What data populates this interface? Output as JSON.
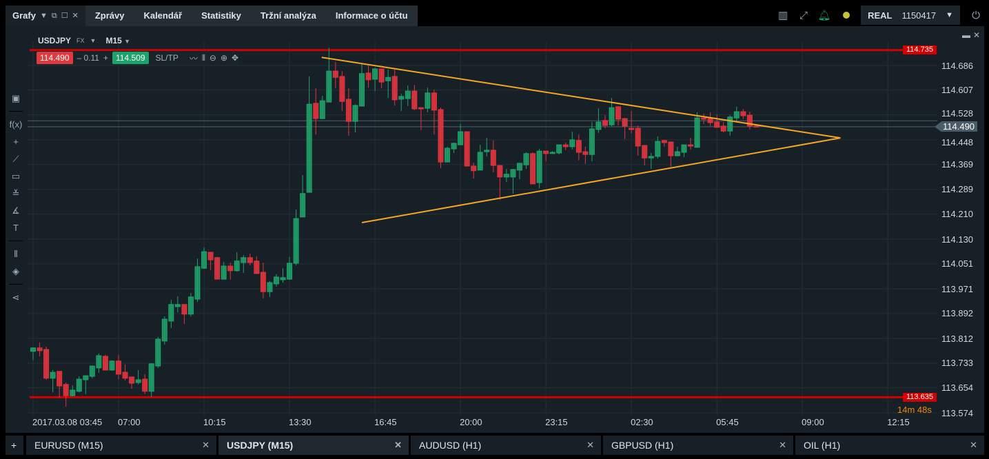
{
  "topnav": {
    "active_tab": "Grafy",
    "tabs": [
      "Zprávy",
      "Kalendář",
      "Statistiky",
      "Tržní analýza",
      "Informace o účtu"
    ]
  },
  "account": {
    "mode": "REAL",
    "number": "1150417"
  },
  "chart_header": {
    "symbol": "USDJPY",
    "market": "FX",
    "timeframe": "M15",
    "bid": "114.490",
    "spread_minus": "– 0.11",
    "spread_plus": "+",
    "ask": "114.509",
    "sltp": "SL/TP"
  },
  "colors": {
    "up": "#1fa36b",
    "down": "#e0343f",
    "level": "#d20000",
    "trend": "#f5a623",
    "background": "#182027"
  },
  "countdown": "14m 48s",
  "bottom_tabs": [
    {
      "label": "EURUSD (M15)"
    },
    {
      "label": "USDJPY (M15)",
      "active": true
    },
    {
      "label": "AUDUSD (H1)"
    },
    {
      "label": "GBPUSD (H1)"
    },
    {
      "label": "OIL (H1)"
    }
  ],
  "chart_data": {
    "type": "candlestick",
    "symbol": "USDJPY",
    "timeframe": "M15",
    "ylim": [
      113.574,
      114.686
    ],
    "y_ticks": [
      "114.686",
      "114.607",
      "114.528",
      "114.448",
      "114.369",
      "114.289",
      "114.210",
      "114.130",
      "114.051",
      "113.971",
      "113.892",
      "113.812",
      "113.733",
      "113.654",
      "113.574"
    ],
    "x_ticks": [
      {
        "bar": 0,
        "label": "2017.03.08 03:45"
      },
      {
        "bar": 13,
        "label": "07:00"
      },
      {
        "bar": 26,
        "label": "10:15"
      },
      {
        "bar": 39,
        "label": "13:30"
      },
      {
        "bar": 52,
        "label": "16:45"
      },
      {
        "bar": 65,
        "label": "20:00"
      },
      {
        "bar": 78,
        "label": "23:15"
      },
      {
        "bar": 91,
        "label": "02:30"
      },
      {
        "bar": 104,
        "label": "05:45"
      },
      {
        "bar": 117,
        "label": "09:00"
      },
      {
        "bar": 130,
        "label": "12:15"
      }
    ],
    "levels": [
      {
        "price": 114.735,
        "label": "114.735"
      },
      {
        "price": 113.635,
        "label": "113.635"
      }
    ],
    "bid_line": {
      "price": 114.49,
      "label": "114.490"
    },
    "ask_line": {
      "price": 114.509
    },
    "trendlines": [
      {
        "from": [
          43.9,
          114.712
        ],
        "to": [
          122.8,
          114.454
        ]
      },
      {
        "from": [
          50.0,
          114.183
        ],
        "to": [
          122.8,
          114.454
        ]
      }
    ],
    "candles": [
      [
        113.771,
        113.784,
        113.742,
        113.782
      ],
      [
        113.782,
        113.799,
        113.755,
        113.773
      ],
      [
        113.777,
        113.786,
        113.68,
        113.685
      ],
      [
        113.685,
        113.711,
        113.64,
        113.704
      ],
      [
        113.707,
        113.707,
        113.623,
        113.66
      ],
      [
        113.665,
        113.671,
        113.594,
        113.629
      ],
      [
        113.629,
        113.662,
        113.627,
        113.647
      ],
      [
        113.643,
        113.691,
        113.64,
        113.682
      ],
      [
        113.68,
        113.693,
        113.634,
        113.693
      ],
      [
        113.691,
        113.726,
        113.685,
        113.724
      ],
      [
        113.718,
        113.764,
        113.702,
        113.757
      ],
      [
        113.755,
        113.76,
        113.711,
        113.711
      ],
      [
        113.711,
        113.742,
        113.709,
        113.74
      ],
      [
        113.74,
        113.76,
        113.682,
        113.698
      ],
      [
        113.704,
        113.729,
        113.678,
        113.685
      ],
      [
        113.689,
        113.689,
        113.651,
        113.669
      ],
      [
        113.671,
        113.711,
        113.665,
        113.68
      ],
      [
        113.682,
        113.698,
        113.634,
        113.643
      ],
      [
        113.643,
        113.733,
        113.625,
        113.731
      ],
      [
        113.724,
        113.817,
        113.718,
        113.81
      ],
      [
        113.804,
        113.883,
        113.793,
        113.874
      ],
      [
        113.868,
        113.936,
        113.846,
        113.921
      ],
      [
        113.914,
        113.947,
        113.896,
        113.921
      ],
      [
        113.921,
        113.921,
        113.859,
        113.89
      ],
      [
        113.89,
        113.958,
        113.883,
        113.945
      ],
      [
        113.938,
        114.068,
        113.929,
        114.042
      ],
      [
        114.037,
        114.104,
        114.035,
        114.09
      ],
      [
        114.088,
        114.088,
        114.031,
        114.064
      ],
      [
        114.071,
        114.073,
        114.002,
        114.002
      ],
      [
        114.002,
        114.057,
        114.002,
        114.044
      ],
      [
        114.044,
        114.055,
        114.0,
        114.029
      ],
      [
        114.029,
        114.088,
        114.026,
        114.06
      ],
      [
        114.055,
        114.079,
        114.022,
        114.071
      ],
      [
        114.071,
        114.084,
        114.046,
        114.055
      ],
      [
        114.06,
        114.075,
        114.02,
        114.02
      ],
      [
        114.024,
        114.055,
        113.94,
        113.962
      ],
      [
        113.962,
        113.996,
        113.945,
        113.991
      ],
      [
        113.987,
        114.018,
        113.978,
        114.009
      ],
      [
        114.0,
        114.037,
        113.991,
        114.007
      ],
      [
        114.002,
        114.073,
        114.0,
        114.053
      ],
      [
        114.053,
        114.225,
        114.046,
        114.196
      ],
      [
        114.201,
        114.335,
        114.201,
        114.276
      ],
      [
        114.28,
        114.651,
        114.28,
        114.562
      ],
      [
        114.565,
        114.613,
        114.465,
        114.516
      ],
      [
        114.516,
        114.589,
        114.514,
        114.573
      ],
      [
        114.569,
        114.743,
        114.569,
        114.668
      ],
      [
        114.668,
        114.697,
        114.613,
        114.648
      ],
      [
        114.651,
        114.668,
        114.54,
        114.571
      ],
      [
        114.578,
        114.613,
        114.461,
        114.507
      ],
      [
        114.507,
        114.562,
        114.472,
        114.558
      ],
      [
        114.556,
        114.693,
        114.556,
        114.66
      ],
      [
        114.662,
        114.688,
        114.615,
        114.64
      ],
      [
        114.642,
        114.679,
        114.604,
        114.675
      ],
      [
        114.675,
        114.675,
        114.613,
        114.633
      ],
      [
        114.637,
        114.673,
        114.582,
        114.648
      ],
      [
        114.651,
        114.673,
        114.558,
        114.576
      ],
      [
        114.578,
        114.596,
        114.54,
        114.587
      ],
      [
        114.58,
        114.622,
        114.556,
        114.604
      ],
      [
        114.604,
        114.624,
        114.543,
        114.547
      ],
      [
        114.551,
        114.551,
        114.479,
        114.547
      ],
      [
        114.549,
        114.615,
        114.536,
        114.598
      ],
      [
        114.598,
        114.609,
        114.465,
        114.543
      ],
      [
        114.545,
        114.551,
        114.357,
        114.377
      ],
      [
        114.377,
        114.426,
        114.377,
        114.421
      ],
      [
        114.419,
        114.439,
        114.406,
        114.437
      ],
      [
        114.432,
        114.499,
        114.432,
        114.474
      ],
      [
        114.474,
        114.474,
        114.364,
        114.364
      ],
      [
        114.364,
        114.375,
        114.324,
        114.349
      ],
      [
        114.351,
        114.432,
        114.351,
        114.408
      ],
      [
        114.41,
        114.454,
        114.395,
        114.415
      ],
      [
        114.415,
        114.446,
        114.344,
        114.366
      ],
      [
        114.366,
        114.366,
        114.256,
        114.329
      ],
      [
        114.329,
        114.355,
        114.313,
        114.338
      ],
      [
        114.329,
        114.355,
        114.276,
        114.353
      ],
      [
        114.351,
        114.373,
        114.322,
        114.373
      ],
      [
        114.368,
        114.408,
        114.355,
        114.404
      ],
      [
        114.404,
        114.408,
        114.307,
        114.307
      ],
      [
        114.311,
        114.419,
        114.293,
        114.412
      ],
      [
        114.412,
        114.412,
        114.379,
        114.404
      ],
      [
        114.404,
        114.412,
        114.404,
        114.408
      ],
      [
        114.406,
        114.432,
        114.401,
        114.432
      ],
      [
        114.432,
        114.439,
        114.415,
        114.426
      ],
      [
        114.426,
        114.474,
        114.417,
        114.448
      ],
      [
        114.446,
        114.465,
        114.382,
        114.408
      ],
      [
        114.41,
        114.426,
        114.371,
        114.401
      ],
      [
        114.401,
        114.505,
        114.379,
        114.483
      ],
      [
        114.481,
        114.549,
        114.47,
        114.505
      ],
      [
        114.51,
        114.527,
        114.485,
        114.494
      ],
      [
        114.496,
        114.582,
        114.492,
        114.551
      ],
      [
        114.554,
        114.556,
        114.494,
        114.514
      ],
      [
        114.516,
        114.518,
        114.45,
        114.492
      ],
      [
        114.485,
        114.54,
        114.468,
        114.481
      ],
      [
        114.485,
        114.494,
        114.397,
        114.428
      ],
      [
        114.43,
        114.43,
        114.366,
        114.39
      ],
      [
        114.39,
        114.406,
        114.355,
        114.395
      ],
      [
        114.395,
        114.459,
        114.388,
        114.443
      ],
      [
        114.446,
        114.448,
        114.426,
        114.439
      ],
      [
        114.441,
        114.443,
        114.362,
        114.397
      ],
      [
        114.397,
        114.426,
        114.397,
        114.41
      ],
      [
        114.408,
        114.432,
        114.393,
        114.432
      ],
      [
        114.432,
        114.454,
        114.417,
        114.428
      ],
      [
        114.424,
        114.536,
        114.424,
        114.518
      ],
      [
        114.518,
        114.532,
        114.499,
        114.514
      ],
      [
        114.516,
        114.536,
        114.492,
        114.503
      ],
      [
        114.505,
        114.529,
        114.488,
        114.488
      ],
      [
        114.492,
        114.505,
        114.472,
        114.476
      ],
      [
        114.476,
        114.527,
        114.461,
        114.521
      ],
      [
        114.518,
        114.554,
        114.505,
        114.538
      ],
      [
        114.538,
        114.547,
        114.514,
        114.525
      ],
      [
        114.527,
        114.538,
        114.481,
        114.492
      ],
      [
        114.492,
        114.496,
        114.49,
        114.49
      ]
    ]
  }
}
